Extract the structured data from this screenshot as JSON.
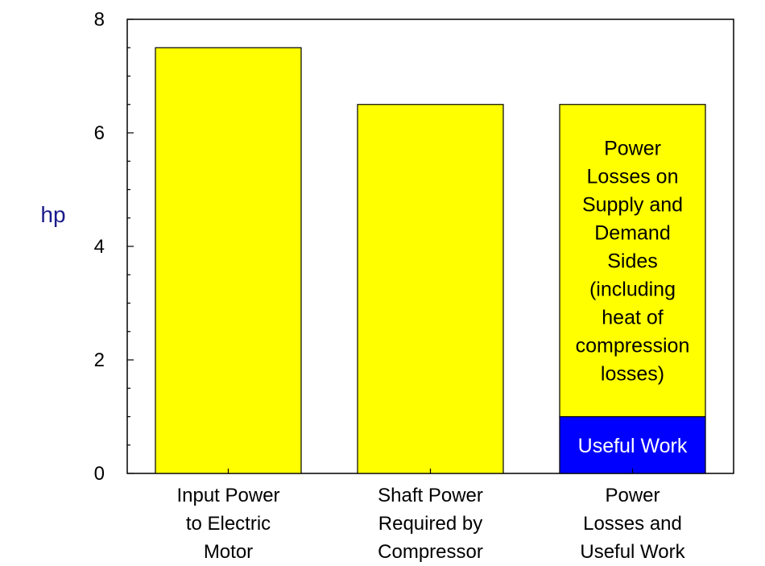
{
  "chart_data": {
    "type": "bar",
    "stacked": true,
    "ylabel": "hp",
    "ylim": [
      0,
      8
    ],
    "yticks": [
      "0",
      "2",
      "4",
      "6",
      "8"
    ],
    "grid": false,
    "categories": [
      [
        "Input Power",
        "to Electric",
        "Motor"
      ],
      [
        "Shaft Power",
        "Required by",
        "Compressor"
      ],
      [
        "Power",
        "Losses and",
        "Useful Work"
      ]
    ],
    "bars": [
      {
        "segments": [
          {
            "value": 7.5,
            "color": "#ffff00"
          }
        ]
      },
      {
        "segments": [
          {
            "value": 6.5,
            "color": "#ffff00"
          }
        ]
      },
      {
        "segments": [
          {
            "value": 1.0,
            "color": "#0000ff",
            "label": [
              "Useful Work"
            ]
          },
          {
            "value": 5.5,
            "color": "#ffff00",
            "label": [
              "Power",
              "Losses on",
              "Supply and",
              "Demand",
              "Sides",
              "(including",
              "heat of",
              "compression",
              "losses)"
            ]
          }
        ]
      }
    ],
    "colors": {
      "bar": "#ffff00",
      "useful_work": "#0000ff",
      "ylabel": "#1a1a8c",
      "axis": "#000000"
    }
  }
}
